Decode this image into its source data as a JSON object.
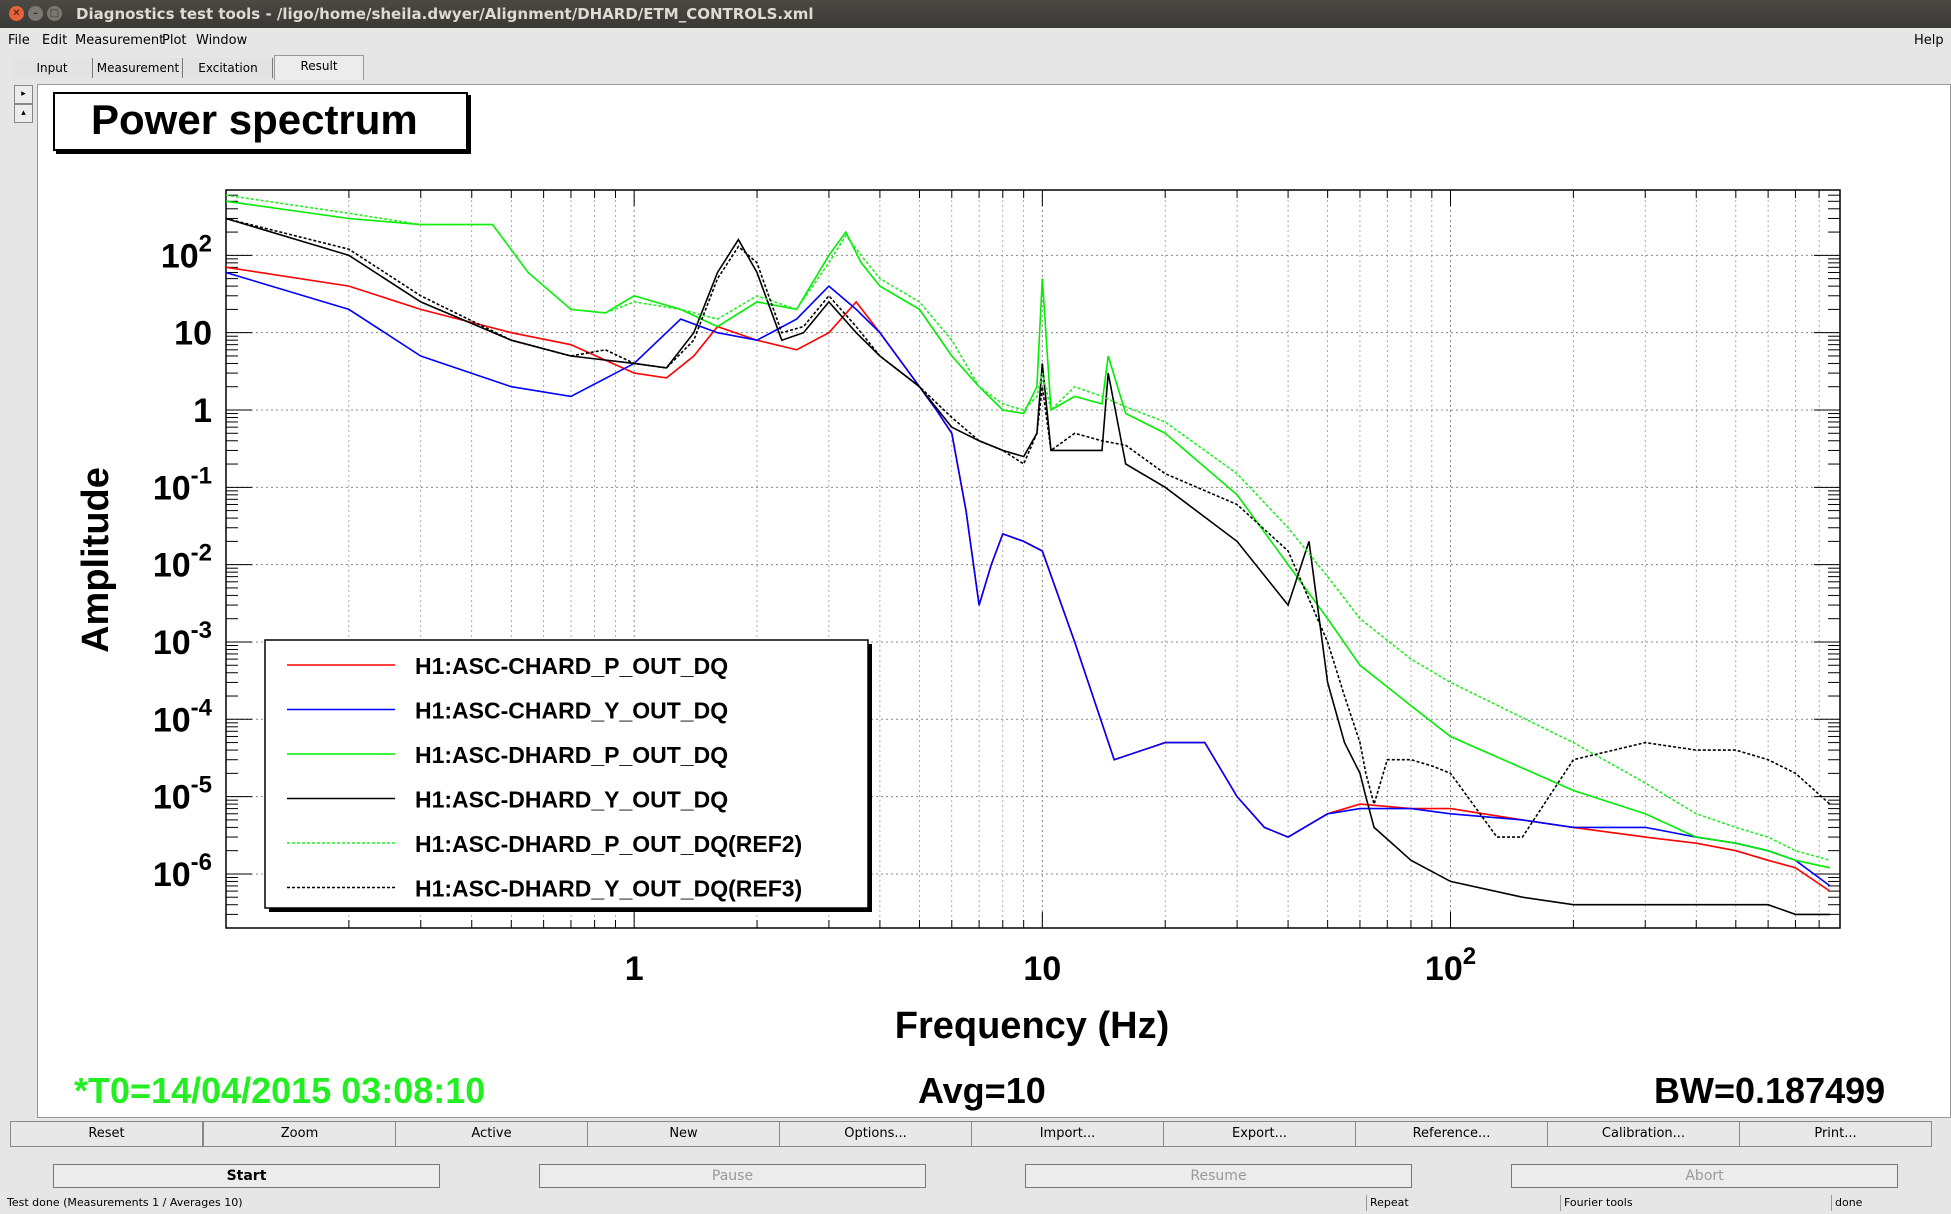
{
  "window": {
    "title": "Diagnostics test tools - /ligo/home/sheila.dwyer/Alignment/DHARD/ETM_CONTROLS.xml"
  },
  "menu": {
    "file": "File",
    "edit": "Edit",
    "measurement": "Measurement",
    "plot": "Plot",
    "window": "Window",
    "help": "Help"
  },
  "tabs": [
    "Input",
    "Measurement",
    "Excitation",
    "Result"
  ],
  "plot": {
    "title": "Power spectrum",
    "t0": "*T0=14/04/2015 03:08:10",
    "avg": "Avg=10",
    "bw": "BW=0.187499",
    "t0_color": "#22ee22"
  },
  "chart_data": {
    "type": "line",
    "xlabel": "Frequency (Hz)",
    "ylabel": "Amplitude",
    "xscale": "log",
    "yscale": "log",
    "xlim": [
      0.1,
      900
    ],
    "ylim": [
      2e-07,
      700
    ],
    "grid": true,
    "legend_position": "bottom-left",
    "x_tick_labels": [
      "1",
      "10",
      "10^2"
    ],
    "y_tick_labels": [
      "10^-6",
      "10^-5",
      "10^-4",
      "10^-3",
      "10^-2",
      "10^-1",
      "1",
      "10",
      "10^2"
    ],
    "series": [
      {
        "name": "H1:ASC-CHARD_P_OUT_DQ",
        "color": "#ff0000",
        "style": "solid",
        "x": [
          0.1,
          0.2,
          0.3,
          0.5,
          0.7,
          1,
          1.2,
          1.4,
          1.6,
          2,
          2.5,
          3,
          3.5,
          4,
          5,
          5.5,
          6,
          6.5,
          7,
          7.5,
          8,
          9,
          10,
          12,
          15,
          20,
          25,
          30,
          35,
          40,
          50,
          60,
          80,
          100,
          150,
          200,
          300,
          400,
          500,
          600,
          700,
          850
        ],
        "y": [
          70,
          40,
          20,
          10,
          7,
          3,
          2.6,
          5,
          12,
          8,
          6,
          10,
          25,
          10,
          2,
          1,
          0.5,
          0.05,
          0.003,
          0.01,
          0.025,
          0.02,
          0.015,
          0.001,
          3e-05,
          5e-05,
          5e-05,
          1e-05,
          4e-06,
          3e-06,
          6e-06,
          8e-06,
          7e-06,
          7e-06,
          5e-06,
          4e-06,
          3e-06,
          2.5e-06,
          2e-06,
          1.5e-06,
          1.2e-06,
          6e-07
        ]
      },
      {
        "name": "H1:ASC-CHARD_Y_OUT_DQ",
        "color": "#0000ff",
        "style": "solid",
        "x": [
          0.1,
          0.2,
          0.3,
          0.5,
          0.7,
          1,
          1.3,
          1.6,
          2,
          2.5,
          3,
          3.5,
          4,
          5,
          5.5,
          6,
          6.5,
          7,
          7.5,
          8,
          9,
          10,
          12,
          15,
          20,
          25,
          30,
          35,
          40,
          50,
          60,
          80,
          100,
          150,
          200,
          300,
          400,
          500,
          600,
          700,
          850
        ],
        "y": [
          60,
          20,
          5,
          2,
          1.5,
          4,
          15,
          10,
          8,
          15,
          40,
          20,
          10,
          2,
          1,
          0.5,
          0.05,
          0.003,
          0.01,
          0.025,
          0.02,
          0.015,
          0.001,
          3e-05,
          5e-05,
          5e-05,
          1e-05,
          4e-06,
          3e-06,
          6e-06,
          7e-06,
          7e-06,
          6e-06,
          5e-06,
          4e-06,
          4e-06,
          3e-06,
          2.5e-06,
          2e-06,
          1.5e-06,
          7e-07
        ]
      },
      {
        "name": "H1:ASC-DHARD_P_OUT_DQ",
        "color": "#00ee00",
        "style": "solid",
        "x": [
          0.1,
          0.2,
          0.3,
          0.45,
          0.55,
          0.7,
          0.85,
          1,
          1.3,
          1.6,
          2,
          2.5,
          3,
          3.3,
          3.6,
          4,
          5,
          6,
          7,
          8,
          9,
          9.7,
          10,
          10.5,
          12,
          14,
          14.5,
          16,
          20,
          30,
          40,
          50,
          60,
          80,
          100,
          200,
          300,
          400,
          500,
          600,
          700,
          850
        ],
        "y": [
          500,
          300,
          250,
          250,
          60,
          20,
          18,
          30,
          20,
          12,
          25,
          20,
          100,
          200,
          80,
          40,
          20,
          5,
          2,
          1,
          0.9,
          2,
          50,
          1,
          1.5,
          1.2,
          5,
          0.9,
          0.5,
          0.08,
          0.01,
          0.002,
          0.0005,
          0.00015,
          6e-05,
          1.2e-05,
          6e-06,
          3e-06,
          2.5e-06,
          2e-06,
          1.5e-06,
          1.2e-06
        ]
      },
      {
        "name": "H1:ASC-DHARD_Y_OUT_DQ",
        "color": "#000000",
        "style": "solid",
        "x": [
          0.1,
          0.2,
          0.3,
          0.5,
          0.7,
          1,
          1.2,
          1.4,
          1.6,
          1.8,
          2,
          2.3,
          2.6,
          3,
          3.5,
          4,
          5,
          6,
          7,
          8,
          9,
          9.7,
          10,
          10.5,
          12,
          14,
          14.5,
          16,
          20,
          30,
          40,
          45,
          50,
          55,
          60,
          62,
          65,
          80,
          100,
          150,
          200,
          300,
          400,
          500,
          600,
          700,
          850
        ],
        "y": [
          300,
          100,
          25,
          8,
          5,
          4,
          3.5,
          10,
          60,
          160,
          60,
          8,
          10,
          25,
          10,
          5,
          2,
          0.6,
          0.4,
          0.3,
          0.25,
          0.5,
          4,
          0.3,
          0.3,
          0.3,
          3,
          0.2,
          0.1,
          0.02,
          0.003,
          0.02,
          0.0003,
          5e-05,
          2e-05,
          1e-05,
          4e-06,
          1.5e-06,
          8e-07,
          5e-07,
          4e-07,
          4e-07,
          4e-07,
          4e-07,
          4e-07,
          3e-07,
          3e-07
        ]
      },
      {
        "name": "H1:ASC-DHARD_P_OUT_DQ(REF2)",
        "color": "#22ee22",
        "style": "dotted",
        "x": [
          0.1,
          0.2,
          0.3,
          0.45,
          0.55,
          0.7,
          0.85,
          1,
          1.3,
          1.6,
          2,
          2.5,
          3,
          3.3,
          3.6,
          4,
          5,
          6,
          7,
          8,
          9,
          9.7,
          10,
          10.5,
          12,
          14,
          16,
          20,
          30,
          40,
          50,
          60,
          80,
          100,
          200,
          300,
          400,
          500,
          600,
          700,
          850
        ],
        "y": [
          600,
          350,
          250,
          250,
          60,
          20,
          18,
          25,
          20,
          15,
          30,
          20,
          80,
          180,
          100,
          50,
          25,
          8,
          2,
          1.2,
          1,
          1.5,
          3,
          1,
          2,
          1.5,
          1.1,
          0.7,
          0.15,
          0.03,
          0.007,
          0.002,
          0.0006,
          0.0003,
          5e-05,
          1.5e-05,
          6e-06,
          4e-06,
          3e-06,
          2e-06,
          1.5e-06
        ]
      },
      {
        "name": "H1:ASC-DHARD_Y_OUT_DQ(REF3)",
        "color": "#000000",
        "style": "dotted",
        "x": [
          0.1,
          0.2,
          0.3,
          0.5,
          0.7,
          0.85,
          1,
          1.2,
          1.4,
          1.6,
          1.8,
          2,
          2.3,
          2.6,
          3,
          3.5,
          4,
          5,
          6,
          7,
          8,
          9,
          9.7,
          10,
          10.5,
          12,
          14,
          16,
          20,
          30,
          40,
          50,
          55,
          60,
          62,
          65,
          70,
          80,
          90,
          100,
          130,
          150,
          200,
          300,
          400,
          500,
          600,
          700,
          850
        ],
        "y": [
          300,
          120,
          30,
          8,
          5,
          6,
          4,
          3.5,
          8,
          50,
          130,
          80,
          10,
          12,
          30,
          12,
          5,
          2,
          0.8,
          0.4,
          0.3,
          0.2,
          0.5,
          2,
          0.3,
          0.5,
          0.4,
          0.35,
          0.15,
          0.06,
          0.015,
          0.001,
          0.0002,
          5e-05,
          2e-05,
          8e-06,
          3e-05,
          3e-05,
          2.5e-05,
          2e-05,
          3e-06,
          3e-06,
          3e-05,
          5e-05,
          4e-05,
          4e-05,
          3e-05,
          2e-05,
          8e-06
        ]
      }
    ]
  },
  "toolbar": [
    "Reset",
    "Zoom",
    "Active",
    "New",
    "Options...",
    "Import...",
    "Export...",
    "Reference...",
    "Calibration...",
    "Print..."
  ],
  "actions": {
    "start": "Start",
    "pause": "Pause",
    "resume": "Resume",
    "abort": "Abort"
  },
  "status": {
    "message": "Test done (Measurements 1 / Averages 10)",
    "repeat": "Repeat",
    "tool": "Fourier tools",
    "state": "done"
  }
}
